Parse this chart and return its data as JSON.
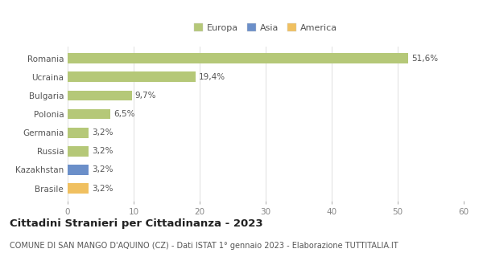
{
  "categories": [
    "Brasile",
    "Kazakhstan",
    "Russia",
    "Germania",
    "Polonia",
    "Bulgaria",
    "Ucraina",
    "Romania"
  ],
  "values": [
    3.2,
    3.2,
    3.2,
    3.2,
    6.5,
    9.7,
    19.4,
    51.6
  ],
  "bar_colors": [
    "#f0c060",
    "#6b8fc9",
    "#b5c878",
    "#b5c878",
    "#b5c878",
    "#b5c878",
    "#b5c878",
    "#b5c878"
  ],
  "bar_labels": [
    "3,2%",
    "3,2%",
    "3,2%",
    "3,2%",
    "6,5%",
    "9,7%",
    "19,4%",
    "51,6%"
  ],
  "xlim": [
    0,
    60
  ],
  "xticks": [
    0,
    10,
    20,
    30,
    40,
    50,
    60
  ],
  "legend_labels": [
    "Europa",
    "Asia",
    "America"
  ],
  "legend_colors": [
    "#b5c878",
    "#6b8fc9",
    "#f0c060"
  ],
  "title": "Cittadini Stranieri per Cittadinanza - 2023",
  "subtitle": "COMUNE DI SAN MANGO D'AQUINO (CZ) - Dati ISTAT 1° gennaio 2023 - Elaborazione TUTTITALIA.IT",
  "background_color": "#ffffff",
  "grid_color": "#e0e0e0",
  "bar_height": 0.55,
  "label_fontsize": 7.5,
  "title_fontsize": 9.5,
  "subtitle_fontsize": 7,
  "ytick_fontsize": 7.5,
  "xtick_fontsize": 7.5
}
